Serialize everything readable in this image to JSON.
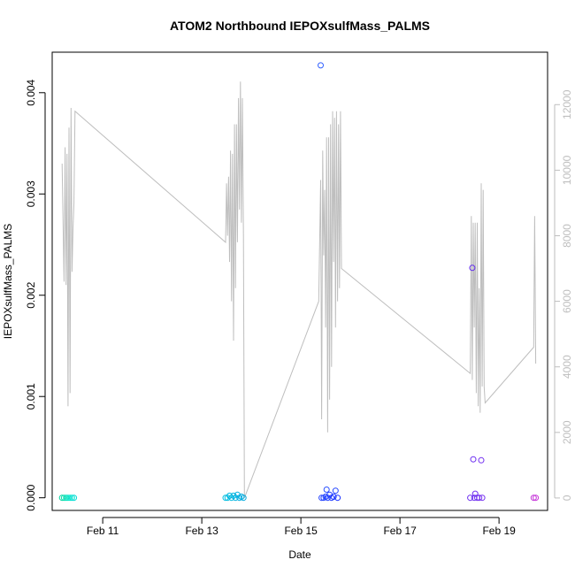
{
  "chart_data": {
    "type": "scatter",
    "title": "ATOM2 Northbound IEPOXsulfMass_PALMS",
    "xlabel": "Date",
    "ylabel": "IEPOXsulfMass_PALMS",
    "x_unit": "days (Feb date, decimal)",
    "xlim": [
      9.98,
      19.98
    ],
    "ylim": [
      -0.000125,
      0.0044
    ],
    "x_ticks": [
      {
        "value": 11,
        "label": "Feb 11"
      },
      {
        "value": 13,
        "label": "Feb 13"
      },
      {
        "value": 15,
        "label": "Feb 15"
      },
      {
        "value": 17,
        "label": "Feb 17"
      },
      {
        "value": 19,
        "label": "Feb 19"
      }
    ],
    "y_ticks": [
      {
        "value": 0.0,
        "label": "0.000"
      },
      {
        "value": 0.001,
        "label": "0.001"
      },
      {
        "value": 0.002,
        "label": "0.002"
      },
      {
        "value": 0.003,
        "label": "0.003"
      },
      {
        "value": 0.004,
        "label": "0.004"
      }
    ],
    "y2lim": [
      -380,
      13600
    ],
    "y2_ticks": [
      {
        "value": 0,
        "label": "0"
      },
      {
        "value": 2000,
        "label": "2000"
      },
      {
        "value": 4000,
        "label": "4000"
      },
      {
        "value": 6000,
        "label": "6000"
      },
      {
        "value": 8000,
        "label": "8000"
      },
      {
        "value": 10000,
        "label": "10000"
      },
      {
        "value": 12000,
        "label": "12000"
      }
    ],
    "y2_color": "#bebebe",
    "line_series": {
      "color": "#bebebe",
      "x": [
        10.18,
        10.22,
        10.24,
        10.26,
        10.28,
        10.3,
        10.32,
        10.34,
        10.36,
        10.38,
        10.4,
        10.42,
        10.44,
        13.48,
        13.5,
        13.52,
        13.54,
        13.56,
        13.58,
        13.6,
        13.62,
        13.64,
        13.66,
        13.68,
        13.7,
        13.72,
        13.74,
        13.76,
        13.78,
        13.8,
        13.82,
        13.84,
        13.86,
        15.36,
        15.4,
        15.42,
        15.44,
        15.46,
        15.48,
        15.5,
        15.52,
        15.54,
        15.56,
        15.58,
        15.6,
        15.62,
        15.64,
        15.66,
        15.68,
        15.7,
        15.72,
        15.74,
        15.76,
        15.78,
        15.8,
        15.82,
        18.42,
        18.44,
        18.46,
        18.48,
        18.5,
        18.52,
        18.54,
        18.56,
        18.58,
        18.6,
        18.62,
        18.64,
        18.66,
        18.68,
        18.7,
        18.72,
        19.7,
        19.72,
        19.74
      ],
      "y": [
        10200,
        6600,
        10700,
        6500,
        10500,
        2800,
        11300,
        3200,
        11900,
        6900,
        8200,
        9000,
        11800,
        7800,
        9600,
        8000,
        9800,
        7200,
        10600,
        6000,
        10500,
        4800,
        11400,
        6400,
        11400,
        7800,
        12200,
        8800,
        12700,
        8400,
        12200,
        8000,
        0,
        6000,
        9700,
        2400,
        10600,
        7400,
        9400,
        5200,
        11000,
        2000,
        11000,
        3000,
        11400,
        4000,
        11800,
        7200,
        11600,
        5200,
        11800,
        6000,
        11400,
        6400,
        11800,
        7000,
        3800,
        8600,
        3600,
        8400,
        5200,
        8400,
        3200,
        8400,
        2800,
        6400,
        2600,
        9600,
        3400,
        9400,
        3400,
        2900,
        4600,
        8600,
        4100
      ]
    },
    "scatter_points": [
      {
        "x": 10.18,
        "y": 0.0,
        "color": "#00d3a0"
      },
      {
        "x": 10.22,
        "y": 0.0,
        "color": "#00dea8"
      },
      {
        "x": 10.26,
        "y": 0.0,
        "color": "#00e0b8"
      },
      {
        "x": 10.3,
        "y": 0.0,
        "color": "#00e6c4"
      },
      {
        "x": 10.34,
        "y": 0.0,
        "color": "#00e8cc"
      },
      {
        "x": 10.38,
        "y": 0.0,
        "color": "#00e2d0"
      },
      {
        "x": 10.42,
        "y": 0.0,
        "color": "#00dcd6"
      },
      {
        "x": 13.48,
        "y": 0.0,
        "color": "#00bfe0"
      },
      {
        "x": 13.52,
        "y": 0.0,
        "color": "#00bce0"
      },
      {
        "x": 13.56,
        "y": 2e-05,
        "color": "#00bae0"
      },
      {
        "x": 13.6,
        "y": 0.0,
        "color": "#00b8e0"
      },
      {
        "x": 13.64,
        "y": 2e-05,
        "color": "#00b5e0"
      },
      {
        "x": 13.68,
        "y": 0.0,
        "color": "#00b2e0"
      },
      {
        "x": 13.72,
        "y": 3e-05,
        "color": "#00b0e0"
      },
      {
        "x": 13.76,
        "y": 0.0,
        "color": "#00aee0"
      },
      {
        "x": 13.8,
        "y": 1e-05,
        "color": "#00acdf"
      },
      {
        "x": 13.84,
        "y": 0.0,
        "color": "#00aadf"
      },
      {
        "x": 15.4,
        "y": 0.00427,
        "color": "#3060ff"
      },
      {
        "x": 15.42,
        "y": 0.0,
        "color": "#2040ff"
      },
      {
        "x": 15.46,
        "y": 0.0,
        "color": "#2040ff"
      },
      {
        "x": 15.5,
        "y": 1e-05,
        "color": "#2244ff"
      },
      {
        "x": 15.52,
        "y": 8e-05,
        "color": "#2a50ff"
      },
      {
        "x": 15.54,
        "y": 0.0,
        "color": "#2040ff"
      },
      {
        "x": 15.58,
        "y": 3e-05,
        "color": "#1e3cff"
      },
      {
        "x": 15.62,
        "y": 0.0,
        "color": "#1c38ff"
      },
      {
        "x": 15.66,
        "y": 1e-05,
        "color": "#1a34ff"
      },
      {
        "x": 15.7,
        "y": 7e-05,
        "color": "#2244ff"
      },
      {
        "x": 15.74,
        "y": 0.0,
        "color": "#1830ff"
      },
      {
        "x": 18.42,
        "y": 0.0,
        "color": "#6a2cf0"
      },
      {
        "x": 18.46,
        "y": 0.00227,
        "color": "#6028f0"
      },
      {
        "x": 18.48,
        "y": 0.00038,
        "color": "#6a2cf0"
      },
      {
        "x": 18.5,
        "y": 0.0,
        "color": "#6a2cf0"
      },
      {
        "x": 18.52,
        "y": 4e-05,
        "color": "#6e2cf0"
      },
      {
        "x": 18.56,
        "y": 0.0,
        "color": "#702cf0"
      },
      {
        "x": 18.6,
        "y": 0.0,
        "color": "#7430f0"
      },
      {
        "x": 18.64,
        "y": 0.00037,
        "color": "#7430f0"
      },
      {
        "x": 18.66,
        "y": 0.0,
        "color": "#7630f0"
      },
      {
        "x": 19.7,
        "y": 0.0,
        "color": "#c030d8"
      },
      {
        "x": 19.74,
        "y": 0.0,
        "color": "#c832d8"
      }
    ]
  }
}
